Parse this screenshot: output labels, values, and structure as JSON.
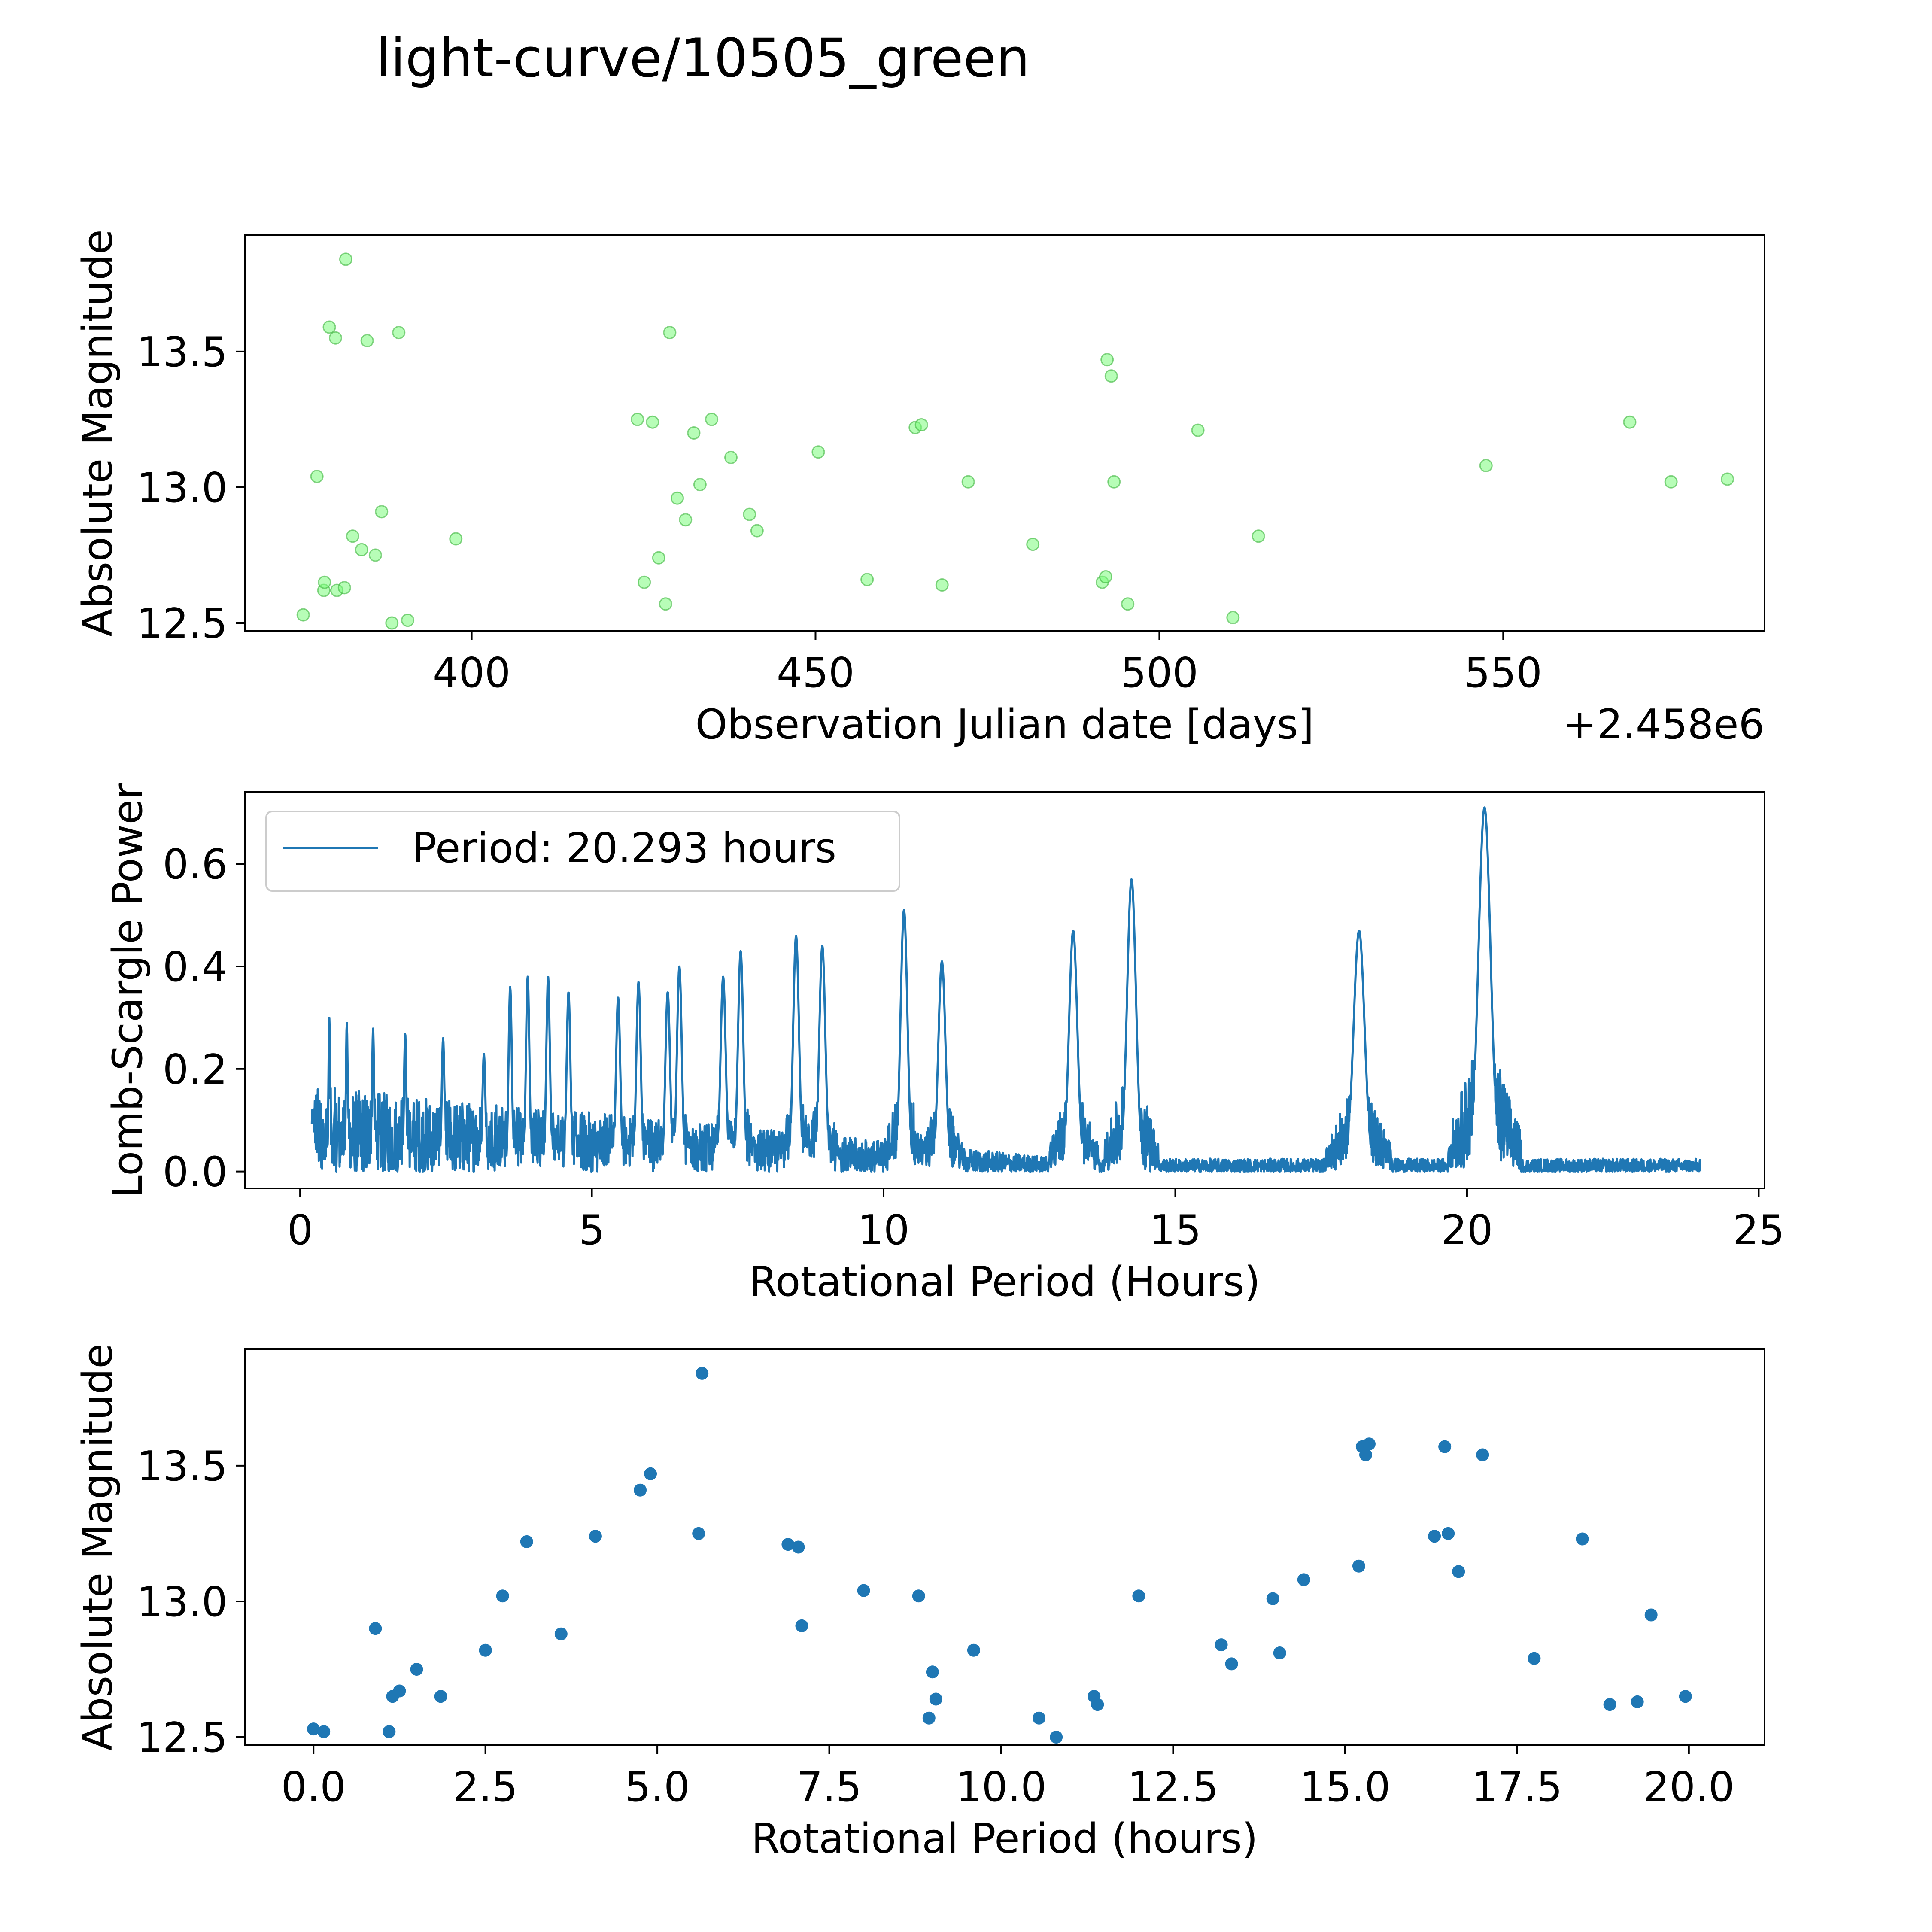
{
  "title": "light-curve/10505_green",
  "colors": {
    "green": "#7cfc7c",
    "blue": "#1f77b4",
    "axis": "#000000"
  },
  "chart_data": [
    {
      "type": "scatter",
      "name": "light-curve",
      "xlabel": "Observation Julian date [days]",
      "ylabel": "Absolute Magnitude",
      "offset_label": "+2.458e6",
      "xlim": [
        367,
        588
      ],
      "ylim": [
        12.47,
        13.93
      ],
      "xticks": [
        400,
        450,
        500,
        550
      ],
      "yticks": [
        12.5,
        13.0,
        13.5
      ],
      "ytick_labels": [
        "12.5",
        "13.0",
        "13.5"
      ],
      "x": [
        375.5,
        377.5,
        378.5,
        378.6,
        379.3,
        380.2,
        380.4,
        381.5,
        381.7,
        382.7,
        384.0,
        384.8,
        386.0,
        386.9,
        388.4,
        389.4,
        390.7,
        397.7,
        424.1,
        425.1,
        426.3,
        427.2,
        428.2,
        428.8,
        429.9,
        431.1,
        432.3,
        433.2,
        434.9,
        437.7,
        440.4,
        441.5,
        450.4,
        457.5,
        464.5,
        465.4,
        468.4,
        472.2,
        481.6,
        491.7,
        492.2,
        492.4,
        493.0,
        493.4,
        495.4,
        505.6,
        510.7,
        514.4,
        547.5,
        568.4,
        574.4,
        582.6
      ],
      "y": [
        12.53,
        13.04,
        12.62,
        12.65,
        13.59,
        13.55,
        12.62,
        12.63,
        13.84,
        12.82,
        12.77,
        13.54,
        12.75,
        12.91,
        12.5,
        13.57,
        12.51,
        12.81,
        13.25,
        12.65,
        13.24,
        12.74,
        12.57,
        13.57,
        12.96,
        12.88,
        13.2,
        13.01,
        13.25,
        13.11,
        12.9,
        12.84,
        13.13,
        12.66,
        13.22,
        13.23,
        12.64,
        13.02,
        12.79,
        12.65,
        12.67,
        13.47,
        13.41,
        13.02,
        12.57,
        13.21,
        12.52,
        12.82,
        13.08,
        13.24,
        13.02,
        13.03
      ]
    },
    {
      "type": "line",
      "name": "periodogram",
      "xlabel": "Rotational Period (Hours)",
      "ylabel": "Lomb-Scargle Power",
      "legend": "Period: 20.293 hours",
      "legend_position": "top-left",
      "xlim": [
        -0.95,
        25.1
      ],
      "ylim": [
        -0.033,
        0.74
      ],
      "xticks": [
        0,
        5,
        10,
        15,
        20,
        25
      ],
      "yticks": [
        0.0,
        0.2,
        0.4,
        0.6
      ],
      "ytick_labels": [
        "0.0",
        "0.2",
        "0.4",
        "0.6"
      ],
      "x_range": [
        0.2,
        24.0
      ],
      "peaks": [
        {
          "x": 0.5,
          "h": 0.3
        },
        {
          "x": 0.8,
          "h": 0.29
        },
        {
          "x": 1.25,
          "h": 0.28
        },
        {
          "x": 1.8,
          "h": 0.27
        },
        {
          "x": 2.45,
          "h": 0.26
        },
        {
          "x": 3.15,
          "h": 0.23
        },
        {
          "x": 3.6,
          "h": 0.36
        },
        {
          "x": 3.9,
          "h": 0.38
        },
        {
          "x": 4.25,
          "h": 0.38
        },
        {
          "x": 4.6,
          "h": 0.35
        },
        {
          "x": 5.45,
          "h": 0.34
        },
        {
          "x": 5.8,
          "h": 0.37
        },
        {
          "x": 6.3,
          "h": 0.35
        },
        {
          "x": 6.5,
          "h": 0.4
        },
        {
          "x": 7.25,
          "h": 0.38
        },
        {
          "x": 7.55,
          "h": 0.43
        },
        {
          "x": 8.5,
          "h": 0.46
        },
        {
          "x": 8.95,
          "h": 0.44
        },
        {
          "x": 10.35,
          "h": 0.51
        },
        {
          "x": 11.0,
          "h": 0.41
        },
        {
          "x": 13.25,
          "h": 0.47
        },
        {
          "x": 14.25,
          "h": 0.57
        },
        {
          "x": 18.15,
          "h": 0.47
        },
        {
          "x": 20.3,
          "h": 0.71
        }
      ]
    },
    {
      "type": "scatter",
      "name": "phase-folded",
      "xlabel": "Rotational Period (hours)",
      "ylabel": "Absolute Magnitude",
      "xlim": [
        -1.0,
        21.1
      ],
      "ylim": [
        12.47,
        13.93
      ],
      "xticks": [
        0.0,
        2.5,
        5.0,
        7.5,
        10.0,
        12.5,
        15.0,
        17.5,
        20.0
      ],
      "xtick_labels": [
        "0.0",
        "2.5",
        "5.0",
        "7.5",
        "10.0",
        "12.5",
        "15.0",
        "17.5",
        "20.0"
      ],
      "yticks": [
        12.5,
        13.0,
        13.5
      ],
      "ytick_labels": [
        "12.5",
        "13.0",
        "13.5"
      ],
      "x": [
        0.0,
        0.15,
        0.9,
        1.1,
        1.15,
        1.25,
        1.5,
        1.85,
        2.5,
        2.75,
        3.1,
        3.6,
        4.1,
        4.75,
        4.9,
        5.6,
        5.65,
        6.9,
        7.05,
        7.1,
        8.0,
        8.8,
        8.95,
        9.0,
        9.05,
        9.6,
        10.55,
        10.8,
        11.35,
        11.4,
        12.0,
        13.2,
        13.35,
        13.95,
        14.05,
        14.4,
        15.2,
        15.25,
        15.3,
        15.35,
        16.3,
        16.45,
        16.5,
        16.65,
        17.0,
        17.75,
        18.45,
        18.85,
        19.25,
        19.45,
        19.95
      ],
      "y": [
        12.53,
        12.52,
        12.9,
        12.52,
        12.65,
        12.67,
        12.75,
        12.65,
        12.82,
        13.02,
        13.22,
        12.88,
        13.24,
        13.41,
        13.47,
        13.25,
        13.84,
        13.21,
        13.2,
        12.91,
        13.04,
        13.02,
        12.57,
        12.74,
        12.64,
        12.82,
        12.57,
        12.5,
        12.65,
        12.62,
        13.02,
        12.84,
        12.77,
        13.01,
        12.81,
        13.08,
        13.13,
        13.57,
        13.54,
        13.58,
        13.24,
        13.57,
        13.25,
        13.11,
        13.54,
        12.79,
        13.23,
        12.62,
        12.63,
        12.95,
        12.65
      ]
    }
  ]
}
